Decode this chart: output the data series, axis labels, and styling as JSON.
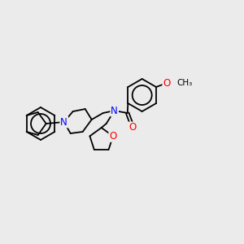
{
  "bg_color": "#ebebeb",
  "atom_colors": {
    "N": "#0000ff",
    "O": "#ff0000",
    "C": "#000000"
  },
  "bond_color": "#000000",
  "figsize": [
    3.0,
    3.0
  ],
  "dpi": 100
}
